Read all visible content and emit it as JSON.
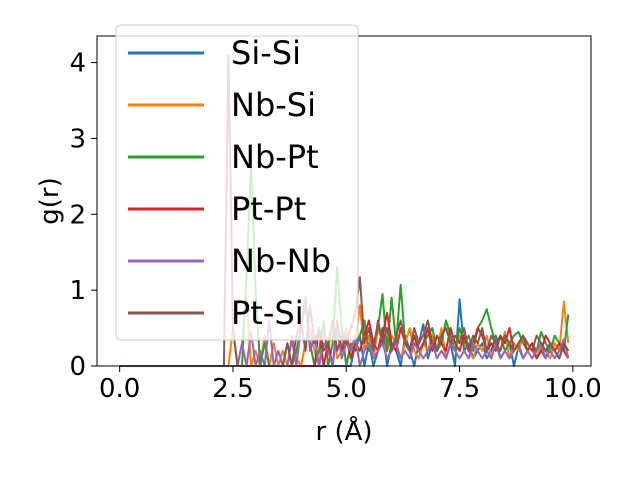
{
  "chart_data": {
    "type": "line",
    "title": "",
    "xlabel": "r (Å)",
    "ylabel": "g(r)",
    "xlim": [
      -0.5,
      10.4
    ],
    "ylim": [
      0,
      4.35
    ],
    "xticks": [
      0.0,
      2.5,
      5.0,
      7.5,
      10.0
    ],
    "xtick_labels": [
      "0.0",
      "2.5",
      "5.0",
      "7.5",
      "10.0"
    ],
    "yticks": [
      0,
      1,
      2,
      3,
      4
    ],
    "ytick_labels": [
      "0",
      "1",
      "2",
      "3",
      "4"
    ],
    "grid": false,
    "legend_position": "top-left",
    "x": [
      0.0,
      0.5,
      1.0,
      1.5,
      2.0,
      2.2,
      2.3,
      2.4,
      2.5,
      2.6,
      2.7,
      2.8,
      2.9,
      3.0,
      3.1,
      3.2,
      3.3,
      3.4,
      3.5,
      3.6,
      3.7,
      3.8,
      3.9,
      4.0,
      4.1,
      4.2,
      4.3,
      4.4,
      4.5,
      4.6,
      4.7,
      4.8,
      4.9,
      5.0,
      5.1,
      5.2,
      5.3,
      5.4,
      5.5,
      5.6,
      5.7,
      5.8,
      5.9,
      6.0,
      6.1,
      6.2,
      6.3,
      6.4,
      6.5,
      6.6,
      6.7,
      6.8,
      6.9,
      7.0,
      7.1,
      7.2,
      7.3,
      7.4,
      7.5,
      7.6,
      7.7,
      7.8,
      7.9,
      8.0,
      8.1,
      8.2,
      8.3,
      8.4,
      8.5,
      8.6,
      8.7,
      8.8,
      8.9,
      9.0,
      9.1,
      9.2,
      9.3,
      9.4,
      9.5,
      9.6,
      9.7,
      9.8,
      9.9
    ],
    "series": [
      {
        "name": "Si-Si",
        "color": "#1f77b4",
        "values": [
          0,
          0,
          0,
          0,
          0,
          0,
          0,
          0,
          0,
          0,
          0,
          0,
          0,
          0,
          0,
          0,
          0,
          0,
          0,
          0,
          0,
          0,
          0,
          0,
          0,
          0,
          0,
          0,
          0,
          0,
          0,
          0,
          0,
          0,
          0,
          0.3,
          0.4,
          0,
          0.3,
          0,
          0.2,
          0.5,
          0,
          0.3,
          0.2,
          0,
          0.4,
          0.2,
          0,
          0.3,
          0.55,
          0.1,
          0.3,
          0.2,
          0.4,
          0.1,
          0.3,
          0,
          0.88,
          0.2,
          0.3,
          0.1,
          0.2,
          0.3,
          0.1,
          0.2,
          0.4,
          0.1,
          0.2,
          0.3,
          0,
          0.25,
          0.1,
          0.2,
          0.3,
          0.1,
          0.2,
          0.1,
          0.3,
          0.2,
          0.1,
          0.3,
          0.2
        ]
      },
      {
        "name": "Nb-Si",
        "color": "#ff7f0e",
        "values": [
          0,
          0,
          0,
          0,
          0,
          0,
          0,
          0,
          0.5,
          0,
          0.3,
          0.9,
          0,
          0.2,
          0,
          0.4,
          0,
          0.3,
          0,
          0.2,
          0,
          0.4,
          0.1,
          0,
          0.3,
          0.5,
          0.2,
          0,
          0.5,
          0.2,
          0.6,
          0.1,
          0.2,
          0.5,
          0.1,
          0.3,
          0.8,
          0.2,
          0.4,
          0.1,
          0.5,
          0.3,
          0.2,
          0.4,
          0.3,
          0.1,
          0.3,
          0.5,
          0.2,
          0.1,
          0.3,
          0.2,
          0.4,
          0.2,
          0.5,
          0.1,
          0.3,
          0.2,
          0.4,
          0.3,
          0.2,
          0.1,
          0.3,
          0.2,
          0.4,
          0.1,
          0.3,
          0.2,
          0.45,
          0.1,
          0.3,
          0.2,
          0.4,
          0.3,
          0.2,
          0.1,
          0.3,
          0.2,
          0.1,
          0.3,
          0.2,
          0.85,
          0.3
        ]
      },
      {
        "name": "Nb-Pt",
        "color": "#2ca02c",
        "values": [
          0,
          0,
          0,
          0,
          0,
          0,
          0,
          0,
          0,
          0,
          0,
          1.2,
          2.65,
          1.0,
          0,
          0.3,
          0,
          0,
          0,
          0,
          0.3,
          0,
          0.2,
          0.5,
          0.8,
          0.3,
          0,
          0.2,
          0.6,
          0,
          0.3,
          1.3,
          0.5,
          0,
          0.3,
          0.2,
          0.4,
          0.6,
          0.2,
          0.3,
          0.5,
          0.95,
          0.2,
          0.9,
          0.3,
          1.07,
          0.3,
          0.2,
          0.4,
          0.2,
          0.3,
          0.4,
          0.5,
          0.2,
          0.3,
          0.6,
          0.4,
          0.2,
          0.5,
          0.3,
          0.4,
          0.2,
          0.5,
          0.6,
          0.75,
          0.5,
          0.3,
          0.4,
          0.2,
          0.3,
          0.4,
          0.45,
          0.3,
          0.2,
          0.3,
          0.2,
          0.45,
          0.3,
          0.2,
          0.4,
          0.3,
          0.2,
          0.68
        ]
      },
      {
        "name": "Pt-Pt",
        "color": "#d62728",
        "values": [
          0,
          0,
          0,
          0,
          0,
          0,
          0,
          0,
          0,
          0,
          0,
          0,
          0,
          0,
          0,
          0,
          0,
          0,
          0,
          0,
          0,
          0,
          0,
          0,
          0,
          0,
          0,
          0.5,
          0,
          0.3,
          0,
          0.6,
          0.2,
          0.4,
          0.1,
          0.3,
          0.2,
          0.4,
          0.6,
          0.3,
          0.2,
          0.4,
          0.7,
          0.3,
          0.2,
          0.5,
          0.3,
          0.2,
          0.4,
          0.2,
          0.3,
          0.5,
          0.2,
          0.4,
          0.3,
          0.2,
          0.5,
          0.3,
          0.2,
          0.4,
          0.2,
          0.3,
          0.5,
          0.4,
          0.2,
          0.3,
          0.2,
          0.4,
          0.3,
          0.5,
          0.2,
          0.3,
          0.4,
          0.2,
          0.3,
          0.1,
          0.2,
          0.4,
          0.3,
          0.2,
          0.3,
          0.2,
          0.1
        ]
      },
      {
        "name": "Nb-Nb",
        "color": "#9467bd",
        "values": [
          0,
          0,
          0,
          0,
          0,
          0,
          0,
          0,
          0,
          0,
          0.3,
          0,
          0.45,
          0,
          0.2,
          0,
          0.6,
          0,
          0.2,
          0,
          0,
          0.35,
          0,
          0.5,
          0.92,
          0.2,
          0.4,
          0,
          0.3,
          0.2,
          0,
          0.5,
          0.1,
          0.3,
          0.2,
          0.4,
          0,
          0.2,
          0.3,
          0.1,
          0.2,
          0.3,
          0.1,
          0.2,
          0.3,
          0.1,
          0.2,
          0.1,
          0.3,
          0.2,
          0.1,
          0.2,
          0.3,
          0.1,
          0.2,
          0.1,
          0.3,
          0.2,
          0.1,
          0.2,
          0.1,
          0.3,
          0.2,
          0.1,
          0.2,
          0.1,
          0.3,
          0.1,
          0.2,
          0.1,
          0.2,
          0.3,
          0.1,
          0.2,
          0.1,
          0.2,
          0.3,
          0.1,
          0.2,
          0.1,
          0.2,
          0.35,
          0.1
        ]
      },
      {
        "name": "Pt-Si",
        "color": "#8c564b",
        "values": [
          0,
          0,
          0,
          0,
          0,
          0,
          0,
          4.1,
          0.5,
          0,
          0,
          0,
          0,
          0,
          0,
          0,
          0,
          0,
          0,
          0,
          0.3,
          0,
          0.4,
          0.6,
          0.2,
          0.8,
          0.3,
          0.5,
          0.2,
          0.3,
          0.6,
          0.2,
          0.4,
          0.3,
          0.5,
          0.7,
          1.17,
          0.3,
          0.5,
          0.2,
          0.6,
          0.3,
          0.5,
          0.2,
          0.4,
          0.6,
          0.3,
          0.2,
          0.5,
          0.3,
          0.4,
          0.6,
          0.3,
          0.2,
          0.4,
          0.5,
          0.3,
          0.4,
          0.3,
          0.5,
          0.2,
          0.4,
          0.3,
          0.5,
          0.2,
          0.4,
          0.3,
          0.2,
          0.4,
          0.3,
          0.2,
          0.3,
          0.4,
          0.3,
          0.2,
          0.4,
          0.3,
          0.2,
          0.3,
          0.2,
          0.1,
          0.3,
          0.2
        ]
      }
    ]
  }
}
